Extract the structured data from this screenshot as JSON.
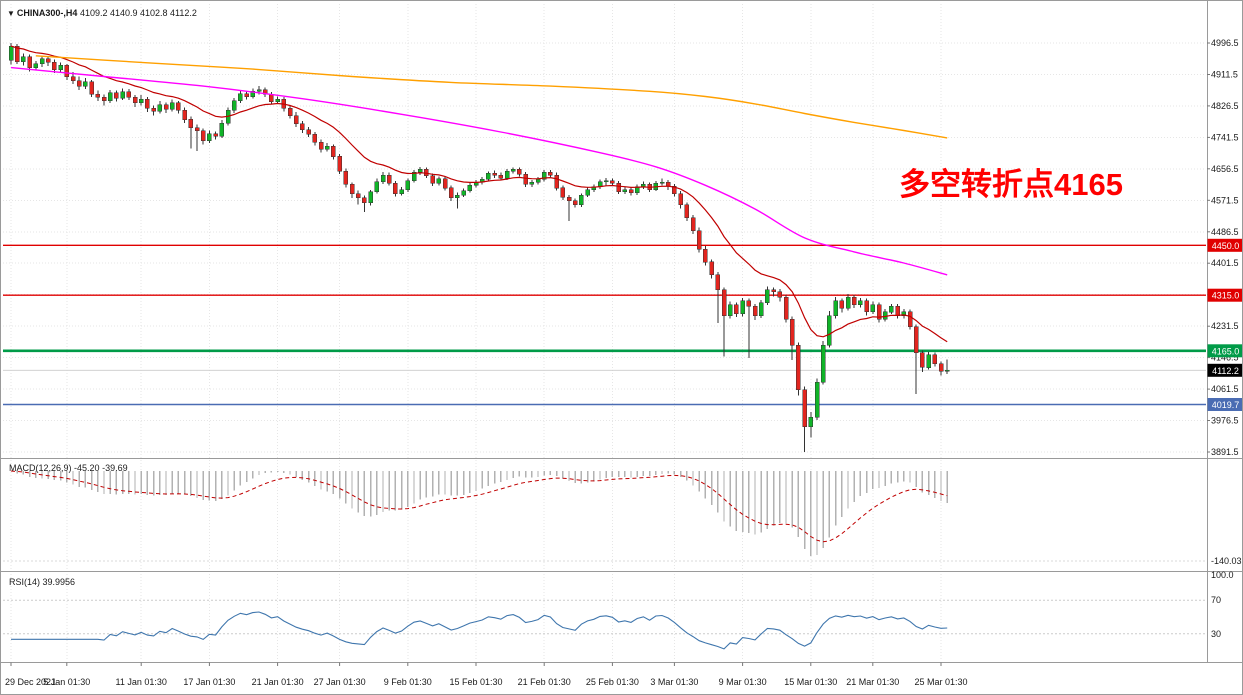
{
  "header": {
    "symbol_period": "CHINA300-,H4",
    "ohlc": "4109.2 4140.9 4102.8 4112.2"
  },
  "chart_data": {
    "type": "candlestick",
    "symbol": "CHINA300-",
    "timeframe": "H4",
    "annotation": {
      "text": "多空转折点4165",
      "color": "#ff0000"
    },
    "price_axis": {
      "range": [
        3891.5,
        4996.5
      ],
      "ticks": [
        4996.5,
        4911.5,
        4826.5,
        4741.5,
        4656.5,
        4571.5,
        4486.5,
        4401.5,
        4316.5,
        4231.5,
        4146.5,
        4061.5,
        3976.5,
        3891.5
      ]
    },
    "time_axis": {
      "ticks": [
        {
          "i": 0,
          "label": "29 Dec 2021"
        },
        {
          "i": 9,
          "label": "5 Jan 01:30"
        },
        {
          "i": 21,
          "label": "11 Jan 01:30"
        },
        {
          "i": 32,
          "label": "17 Jan 01:30"
        },
        {
          "i": 43,
          "label": "21 Jan 01:30"
        },
        {
          "i": 53,
          "label": "27 Jan 01:30"
        },
        {
          "i": 64,
          "label": "9 Feb 01:30"
        },
        {
          "i": 75,
          "label": "15 Feb 01:30"
        },
        {
          "i": 86,
          "label": "21 Feb 01:30"
        },
        {
          "i": 97,
          "label": "25 Feb 01:30"
        },
        {
          "i": 107,
          "label": "3 Mar 01:30"
        },
        {
          "i": 118,
          "label": "9 Mar 01:30"
        },
        {
          "i": 129,
          "label": "15 Mar 01:30"
        },
        {
          "i": 139,
          "label": "21 Mar 01:30"
        },
        {
          "i": 150,
          "label": "25 Mar 01:30"
        }
      ]
    },
    "colors": {
      "up": "#10b428",
      "down": "#e2251f",
      "wick": "#333333"
    },
    "candles": [
      [
        4950,
        4996,
        4938,
        4988
      ],
      [
        4988,
        4994,
        4940,
        4946
      ],
      [
        4946,
        4968,
        4936,
        4960
      ],
      [
        4960,
        4966,
        4920,
        4930
      ],
      [
        4930,
        4948,
        4922,
        4940
      ],
      [
        4940,
        4962,
        4932,
        4954
      ],
      [
        4954,
        4960,
        4934,
        4945
      ],
      [
        4945,
        4952,
        4916,
        4925
      ],
      [
        4925,
        4944,
        4918,
        4936
      ],
      [
        4936,
        4940,
        4896,
        4905
      ],
      [
        4905,
        4918,
        4886,
        4895
      ],
      [
        4895,
        4906,
        4870,
        4880
      ],
      [
        4880,
        4902,
        4872,
        4892
      ],
      [
        4892,
        4896,
        4850,
        4858
      ],
      [
        4858,
        4868,
        4840,
        4850
      ],
      [
        4850,
        4858,
        4828,
        4840
      ],
      [
        4840,
        4870,
        4834,
        4862
      ],
      [
        4862,
        4868,
        4838,
        4848
      ],
      [
        4848,
        4874,
        4842,
        4865
      ],
      [
        4865,
        4872,
        4842,
        4850
      ],
      [
        4850,
        4856,
        4824,
        4835
      ],
      [
        4835,
        4856,
        4828,
        4845
      ],
      [
        4845,
        4850,
        4810,
        4820
      ],
      [
        4820,
        4828,
        4800,
        4812
      ],
      [
        4812,
        4840,
        4806,
        4830
      ],
      [
        4830,
        4836,
        4808,
        4818
      ],
      [
        4818,
        4844,
        4812,
        4835
      ],
      [
        4835,
        4840,
        4806,
        4815
      ],
      [
        4815,
        4822,
        4780,
        4790
      ],
      [
        4790,
        4798,
        4712,
        4768
      ],
      [
        4768,
        4776,
        4705,
        4760
      ],
      [
        4760,
        4766,
        4722,
        4732
      ],
      [
        4732,
        4760,
        4726,
        4752
      ],
      [
        4752,
        4758,
        4736,
        4745
      ],
      [
        4745,
        4788,
        4740,
        4780
      ],
      [
        4780,
        4822,
        4774,
        4815
      ],
      [
        4815,
        4848,
        4808,
        4840
      ],
      [
        4840,
        4868,
        4834,
        4860
      ],
      [
        4860,
        4866,
        4844,
        4852
      ],
      [
        4852,
        4874,
        4846,
        4866
      ],
      [
        4866,
        4880,
        4858,
        4870
      ],
      [
        4870,
        4876,
        4850,
        4858
      ],
      [
        4858,
        4864,
        4830,
        4838
      ],
      [
        4838,
        4852,
        4832,
        4845
      ],
      [
        4845,
        4850,
        4812,
        4820
      ],
      [
        4820,
        4826,
        4792,
        4800
      ],
      [
        4800,
        4810,
        4770,
        4778
      ],
      [
        4778,
        4786,
        4754,
        4762
      ],
      [
        4762,
        4770,
        4742,
        4750
      ],
      [
        4750,
        4756,
        4720,
        4728
      ],
      [
        4728,
        4736,
        4700,
        4710
      ],
      [
        4710,
        4726,
        4704,
        4718
      ],
      [
        4718,
        4722,
        4682,
        4690
      ],
      [
        4690,
        4696,
        4642,
        4650
      ],
      [
        4650,
        4658,
        4606,
        4615
      ],
      [
        4615,
        4620,
        4578,
        4590
      ],
      [
        4590,
        4598,
        4560,
        4578
      ],
      [
        4578,
        4584,
        4540,
        4565
      ],
      [
        4565,
        4600,
        4558,
        4595
      ],
      [
        4595,
        4630,
        4590,
        4622
      ],
      [
        4622,
        4648,
        4616,
        4640
      ],
      [
        4640,
        4646,
        4612,
        4618
      ],
      [
        4618,
        4624,
        4582,
        4590
      ],
      [
        4590,
        4608,
        4584,
        4600
      ],
      [
        4600,
        4630,
        4594,
        4625
      ],
      [
        4625,
        4654,
        4620,
        4648
      ],
      [
        4648,
        4662,
        4640,
        4655
      ],
      [
        4655,
        4660,
        4632,
        4638
      ],
      [
        4638,
        4644,
        4610,
        4618
      ],
      [
        4618,
        4636,
        4612,
        4630
      ],
      [
        4630,
        4636,
        4598,
        4605
      ],
      [
        4605,
        4612,
        4570,
        4578
      ],
      [
        4578,
        4592,
        4550,
        4585
      ],
      [
        4585,
        4604,
        4580,
        4598
      ],
      [
        4598,
        4618,
        4592,
        4612
      ],
      [
        4612,
        4626,
        4606,
        4620
      ],
      [
        4620,
        4634,
        4614,
        4628
      ],
      [
        4628,
        4650,
        4622,
        4645
      ],
      [
        4645,
        4652,
        4632,
        4640
      ],
      [
        4640,
        4646,
        4626,
        4632
      ],
      [
        4632,
        4656,
        4626,
        4650
      ],
      [
        4650,
        4660,
        4644,
        4655
      ],
      [
        4655,
        4660,
        4636,
        4642
      ],
      [
        4642,
        4648,
        4608,
        4615
      ],
      [
        4615,
        4626,
        4608,
        4620
      ],
      [
        4620,
        4634,
        4614,
        4628
      ],
      [
        4628,
        4653,
        4622,
        4648
      ],
      [
        4648,
        4654,
        4634,
        4640
      ],
      [
        4640,
        4646,
        4598,
        4605
      ],
      [
        4605,
        4612,
        4572,
        4580
      ],
      [
        4580,
        4586,
        4515,
        4570
      ],
      [
        4570,
        4576,
        4552,
        4560
      ],
      [
        4560,
        4590,
        4554,
        4585
      ],
      [
        4585,
        4606,
        4580,
        4600
      ],
      [
        4600,
        4614,
        4594,
        4608
      ],
      [
        4608,
        4628,
        4602,
        4622
      ],
      [
        4622,
        4632,
        4612,
        4625
      ],
      [
        4625,
        4630,
        4610,
        4618
      ],
      [
        4618,
        4624,
        4588,
        4595
      ],
      [
        4595,
        4608,
        4588,
        4600
      ],
      [
        4600,
        4606,
        4584,
        4592
      ],
      [
        4592,
        4614,
        4586,
        4608
      ],
      [
        4608,
        4622,
        4602,
        4615
      ],
      [
        4615,
        4620,
        4594,
        4600
      ],
      [
        4600,
        4624,
        4596,
        4618
      ],
      [
        4618,
        4630,
        4612,
        4620
      ],
      [
        4620,
        4626,
        4600,
        4610
      ],
      [
        4610,
        4616,
        4582,
        4590
      ],
      [
        4590,
        4596,
        4550,
        4560
      ],
      [
        4560,
        4566,
        4515,
        4525
      ],
      [
        4525,
        4532,
        4480,
        4490
      ],
      [
        4490,
        4498,
        4430,
        4440
      ],
      [
        4440,
        4448,
        4396,
        4405
      ],
      [
        4405,
        4412,
        4360,
        4370
      ],
      [
        4370,
        4378,
        4240,
        4330
      ],
      [
        4330,
        4336,
        4150,
        4260
      ],
      [
        4260,
        4298,
        4252,
        4290
      ],
      [
        4290,
        4296,
        4256,
        4265
      ],
      [
        4265,
        4308,
        4258,
        4300
      ],
      [
        4300,
        4306,
        4145,
        4285
      ],
      [
        4285,
        4292,
        4248,
        4260
      ],
      [
        4260,
        4302,
        4254,
        4295
      ],
      [
        4295,
        4338,
        4288,
        4330
      ],
      [
        4330,
        4336,
        4312,
        4325
      ],
      [
        4325,
        4332,
        4298,
        4310
      ],
      [
        4310,
        4316,
        4242,
        4250
      ],
      [
        4250,
        4258,
        4140,
        4180
      ],
      [
        4180,
        4188,
        4044,
        4060
      ],
      [
        4060,
        4068,
        3892,
        3960
      ],
      [
        3960,
        4000,
        3930,
        3985
      ],
      [
        3985,
        4090,
        3978,
        4080
      ],
      [
        4080,
        4192,
        4074,
        4180
      ],
      [
        4180,
        4272,
        4174,
        4260
      ],
      [
        4260,
        4310,
        4252,
        4300
      ],
      [
        4300,
        4306,
        4268,
        4280
      ],
      [
        4280,
        4318,
        4274,
        4310
      ],
      [
        4310,
        4316,
        4280,
        4290
      ],
      [
        4290,
        4308,
        4282,
        4300
      ],
      [
        4300,
        4306,
        4260,
        4270
      ],
      [
        4270,
        4298,
        4264,
        4290
      ],
      [
        4290,
        4296,
        4242,
        4250
      ],
      [
        4250,
        4278,
        4244,
        4270
      ],
      [
        4270,
        4292,
        4264,
        4285
      ],
      [
        4285,
        4292,
        4252,
        4260
      ],
      [
        4260,
        4278,
        4252,
        4270
      ],
      [
        4270,
        4276,
        4222,
        4230
      ],
      [
        4230,
        4236,
        4048,
        4160
      ],
      [
        4160,
        4166,
        4108,
        4120
      ],
      [
        4120,
        4162,
        4114,
        4155
      ],
      [
        4155,
        4160,
        4122,
        4130
      ],
      [
        4130,
        4136,
        4098,
        4109.2
      ],
      [
        4109.2,
        4140.9,
        4102.8,
        4112.2
      ]
    ],
    "hlines": [
      {
        "price": 4450.0,
        "label": "4450.0",
        "color": "#e00000",
        "badge": "#e00000",
        "width": 1.4
      },
      {
        "price": 4315.0,
        "label": "4315.0",
        "color": "#e00000",
        "badge": "#e00000",
        "width": 1.4
      },
      {
        "price": 4165.0,
        "label": "4165.0",
        "color": "#009b48",
        "badge": "#009b48",
        "width": 2.6
      },
      {
        "price": 4019.7,
        "label": "4019.7",
        "color": "#4a6cb3",
        "badge": "#4a6cb3",
        "width": 1.4
      }
    ],
    "current_price": {
      "value": 4112.2,
      "label": "4112.2",
      "badge": "#000000"
    },
    "moving_averages": {
      "fast": {
        "period": 16,
        "color": "#c00000"
      },
      "medium": {
        "color": "#ff00ff",
        "points": [
          [
            0,
            4930
          ],
          [
            15,
            4906
          ],
          [
            31,
            4880
          ],
          [
            47,
            4846
          ],
          [
            63,
            4804
          ],
          [
            79,
            4756
          ],
          [
            95,
            4700
          ],
          [
            104,
            4662
          ],
          [
            112,
            4612
          ],
          [
            120,
            4548
          ],
          [
            128,
            4470
          ],
          [
            136,
            4432
          ],
          [
            144,
            4402
          ],
          [
            151,
            4370
          ]
        ]
      },
      "slow": {
        "color": "#ffa000",
        "points": [
          [
            4,
            4962
          ],
          [
            23,
            4942
          ],
          [
            39,
            4926
          ],
          [
            55,
            4906
          ],
          [
            71,
            4890
          ],
          [
            87,
            4880
          ],
          [
            103,
            4866
          ],
          [
            112,
            4852
          ],
          [
            120,
            4832
          ],
          [
            128,
            4806
          ],
          [
            136,
            4782
          ],
          [
            144,
            4760
          ],
          [
            151,
            4740
          ]
        ]
      }
    },
    "macd": {
      "label": "MACD(12,26,9)",
      "values_text": "-45.20 -39.69",
      "fast": 12,
      "slow": 26,
      "signal": 9,
      "axis_label": "-140.03",
      "histogram_color": "#b2b2b2",
      "signal_color": "#c00000"
    },
    "rsi": {
      "label": "RSI(14)",
      "value_text": "39.9956",
      "period": 14,
      "levels": [
        70,
        30
      ],
      "axis_labels": [
        {
          "value": 100,
          "label": "100.0"
        },
        {
          "value": 70,
          "label": "70"
        },
        {
          "value": 30,
          "label": "30"
        }
      ],
      "line_color": "#3f76ad"
    }
  }
}
